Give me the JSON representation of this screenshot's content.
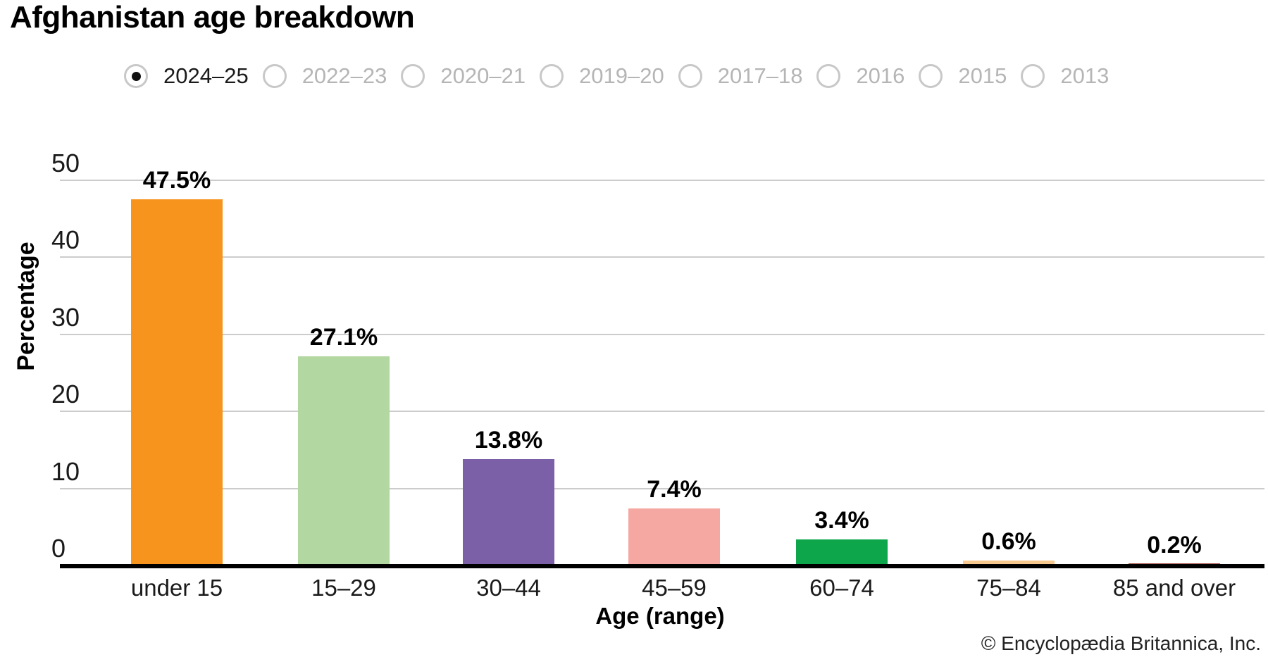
{
  "title": "Afghanistan age breakdown",
  "year_selector": {
    "options": [
      "2024–25",
      "2022–23",
      "2020–21",
      "2019–20",
      "2017–18",
      "2016",
      "2015",
      "2013"
    ],
    "selected": "2024–25",
    "selected_index": 0
  },
  "chart_data": {
    "type": "bar",
    "title": "Afghanistan age breakdown",
    "categories": [
      "under 15",
      "15–29",
      "30–44",
      "45–59",
      "60–74",
      "75–84",
      "85 and over"
    ],
    "values": [
      47.5,
      27.1,
      13.8,
      7.4,
      3.4,
      0.6,
      0.2
    ],
    "value_labels": [
      "47.5%",
      "27.1%",
      "13.8%",
      "7.4%",
      "3.4%",
      "0.6%",
      "0.2%"
    ],
    "bar_colors": [
      "#F7941E",
      "#B2D7A1",
      "#7B5FA7",
      "#F5A8A1",
      "#0EA64B",
      "#F9CA8F",
      "#9D3C33"
    ],
    "xlabel": "Age (range)",
    "ylabel": "Percentage",
    "ylim": [
      0,
      50
    ],
    "yticks": [
      0,
      10,
      20,
      30,
      40,
      50
    ],
    "grid": "horizontal",
    "legend": "none"
  },
  "copyright": "© Encyclopædia Britannica, Inc.",
  "colors": {
    "grid": "#cccccc",
    "axis": "#000000",
    "radio_ring": "#c8c8c8",
    "radio_selected_dot": "#111111",
    "radio_unselected_text": "#b5b5b5",
    "radio_selected_text": "#1a1a1a"
  }
}
